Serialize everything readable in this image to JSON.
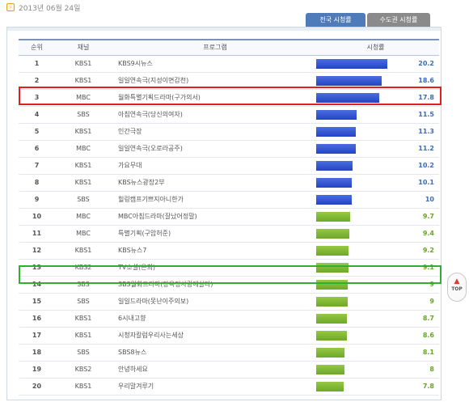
{
  "date": "2013년 06월 24일",
  "tabs": {
    "active": "전국 시청률",
    "inactive": "수도권 시청률"
  },
  "table": {
    "headers": {
      "rank": "순위",
      "channel": "채널",
      "program": "프로그램",
      "rating": "시청률"
    },
    "max_rating": 22,
    "rows": [
      {
        "rank": "1",
        "channel": "KBS1",
        "program": "KBS9시뉴스",
        "rating": "20.2",
        "bar": "blue"
      },
      {
        "rank": "2",
        "channel": "KBS1",
        "program": "일일연속극(지성이면감천)",
        "rating": "18.6",
        "bar": "blue"
      },
      {
        "rank": "3",
        "channel": "MBC",
        "program": "월화특별기획드라마(구가의서)",
        "rating": "17.8",
        "bar": "blue"
      },
      {
        "rank": "4",
        "channel": "SBS",
        "program": "아침연속극(당신의여자)",
        "rating": "11.5",
        "bar": "blue"
      },
      {
        "rank": "5",
        "channel": "KBS1",
        "program": "인간극장",
        "rating": "11.3",
        "bar": "blue"
      },
      {
        "rank": "6",
        "channel": "MBC",
        "program": "일일연속극(오로라공주)",
        "rating": "11.2",
        "bar": "blue"
      },
      {
        "rank": "7",
        "channel": "KBS1",
        "program": "가요무대",
        "rating": "10.2",
        "bar": "blue"
      },
      {
        "rank": "8",
        "channel": "KBS1",
        "program": "KBS뉴스광장2부",
        "rating": "10.1",
        "bar": "blue"
      },
      {
        "rank": "9",
        "channel": "SBS",
        "program": "힐링캠프기쁘지아니한가",
        "rating": "10",
        "bar": "blue"
      },
      {
        "rank": "10",
        "channel": "MBC",
        "program": "MBC아침드라마(잘났어정말)",
        "rating": "9.7",
        "bar": "green"
      },
      {
        "rank": "11",
        "channel": "MBC",
        "program": "특별기획(구암허준)",
        "rating": "9.4",
        "bar": "green"
      },
      {
        "rank": "12",
        "channel": "KBS1",
        "program": "KBS뉴스7",
        "rating": "9.2",
        "bar": "green"
      },
      {
        "rank": "13",
        "channel": "KBS2",
        "program": "TV소설(은희)",
        "rating": "9.1",
        "bar": "green"
      },
      {
        "rank": "14",
        "channel": "SBS",
        "program": "SBS월화드라마(장옥정사랑에살다)",
        "rating": "9",
        "bar": "green"
      },
      {
        "rank": "15",
        "channel": "SBS",
        "program": "일일드라마(못난이주의보)",
        "rating": "9",
        "bar": "green"
      },
      {
        "rank": "16",
        "channel": "KBS1",
        "program": "6시내고향",
        "rating": "8.7",
        "bar": "green"
      },
      {
        "rank": "17",
        "channel": "KBS1",
        "program": "시청자칼럼우리사는세상",
        "rating": "8.6",
        "bar": "green"
      },
      {
        "rank": "18",
        "channel": "SBS",
        "program": "SBS8뉴스",
        "rating": "8.1",
        "bar": "green"
      },
      {
        "rank": "19",
        "channel": "KBS2",
        "program": "안녕하세요",
        "rating": "8",
        "bar": "green"
      },
      {
        "rank": "20",
        "channel": "KBS1",
        "program": "우리말겨루기",
        "rating": "7.8",
        "bar": "green"
      }
    ]
  },
  "top_button": {
    "label": "TOP",
    "icon": "up-arrow-icon"
  },
  "colors": {
    "bar_blue": "#2c4fd0",
    "bar_green": "#80b834",
    "highlight_red": "#e02020",
    "highlight_green": "#30b030"
  }
}
